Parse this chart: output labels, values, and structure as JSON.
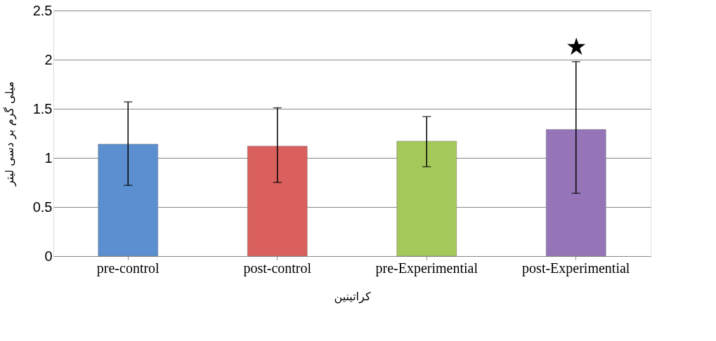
{
  "chart_data": {
    "type": "bar",
    "xlabel": "کراتینین",
    "ylabel": "میلی گرم بر دسی لیتر",
    "categories": [
      "pre-control",
      "post-control",
      "pre-Experimential",
      "post-Experimential"
    ],
    "values": [
      1.14,
      1.12,
      1.17,
      1.29
    ],
    "colors": [
      "#5b8fd0",
      "#d9605c",
      "#a5c85a",
      "#9575b8"
    ],
    "errors": [
      [
        0.72,
        1.57
      ],
      [
        0.75,
        1.51
      ],
      [
        0.91,
        1.42
      ],
      [
        0.64,
        1.98
      ]
    ],
    "ylim": [
      0,
      2.5
    ],
    "yticks": [
      0,
      0.5,
      1,
      1.5,
      2,
      2.5
    ],
    "grid": "y",
    "annotations": [
      "★"
    ]
  }
}
